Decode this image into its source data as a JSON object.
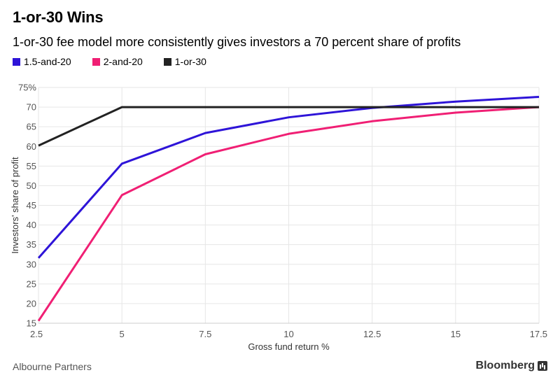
{
  "chart_data": {
    "type": "line",
    "title": "1-or-30 Wins",
    "subtitle": "1-or-30 fee model more consistently gives investors a 70 percent share of profits",
    "xlabel": "Gross fund return %",
    "ylabel": "Investors' share of profit",
    "x": [
      2.5,
      5,
      7.5,
      10,
      12.5,
      15,
      17.5
    ],
    "x_tick_labels": [
      "2.5",
      "5",
      "7.5",
      "10",
      "12.5",
      "15",
      "17.5"
    ],
    "xlim": [
      2.5,
      17.5
    ],
    "ylim": [
      15,
      75
    ],
    "y_ticks": [
      15,
      20,
      25,
      30,
      35,
      40,
      45,
      50,
      55,
      60,
      65,
      70,
      75
    ],
    "y_tick_labels": [
      "15",
      "20",
      "25",
      "30",
      "35",
      "40",
      "45",
      "50",
      "55",
      "60",
      "65",
      "70",
      "75%"
    ],
    "grid": true,
    "legend_position": "top-left",
    "series": [
      {
        "name": "1.5-and-20",
        "color": "#2e14d8",
        "values": [
          31.6,
          55.6,
          63.4,
          67.4,
          69.8,
          71.4,
          72.6
        ]
      },
      {
        "name": "2-and-20",
        "color": "#f01f74",
        "values": [
          15.6,
          47.6,
          58.0,
          63.2,
          66.4,
          68.6,
          70.0
        ]
      },
      {
        "name": "1-or-30",
        "color": "#222222",
        "values": [
          60.2,
          70.0,
          70.0,
          70.0,
          70.0,
          70.0,
          70.0
        ]
      }
    ]
  },
  "source": "Albourne Partners",
  "brand": "Bloomberg",
  "brand_icon": "bloomberg-chart-icon"
}
